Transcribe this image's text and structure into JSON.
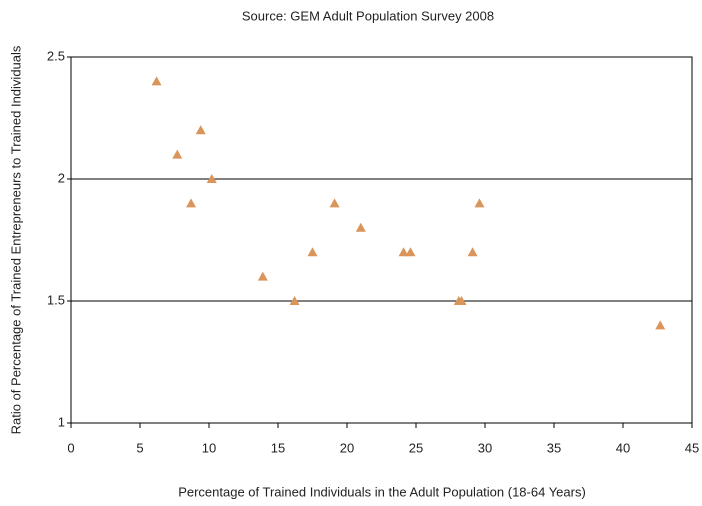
{
  "chart_data": {
    "type": "scatter",
    "title": "Source: GEM Adult Population Survey 2008",
    "x_label": "Percentage of Trained Individuals in the Adult Population (18-64 Years)",
    "y_label": "Ratio of Percentage of Trained Entrepreneurs to Trained Individuals",
    "x": [
      6.2,
      7.7,
      9.4,
      8.7,
      10.2,
      13.9,
      16.2,
      17.5,
      19.1,
      21.0,
      24.1,
      24.6,
      28.1,
      28.3,
      29.1,
      29.6,
      42.7
    ],
    "values": [
      2.4,
      2.1,
      2.2,
      1.9,
      2.0,
      1.6,
      1.5,
      1.7,
      1.9,
      1.8,
      1.7,
      1.7,
      1.5,
      1.5,
      1.7,
      1.9,
      1.4
    ],
    "color": "#d9955a",
    "marker": "triangle",
    "xlim": [
      0,
      45
    ],
    "xticks": [
      0,
      5,
      10,
      15,
      20,
      25,
      30,
      35,
      40,
      45
    ],
    "ylim": [
      1,
      2.5
    ],
    "yticks": [
      1,
      1.5,
      2,
      2.5
    ],
    "grid": true
  }
}
